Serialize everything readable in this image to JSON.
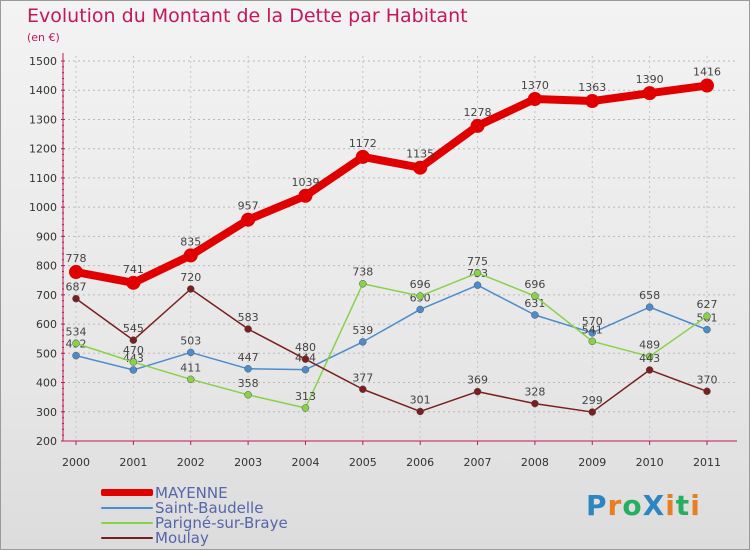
{
  "header": {
    "title": "Evolution du Montant de la Dette par Habitant",
    "subtitle": "(en €)"
  },
  "logo": {
    "text": "ProXiti",
    "letters": [
      {
        "char": "P",
        "color": "#2e86c1"
      },
      {
        "char": "r",
        "color": "#e67e22"
      },
      {
        "char": "o",
        "color": "#27ae60"
      },
      {
        "char": "X",
        "color": "#2e86c1"
      },
      {
        "char": "i",
        "color": "#e67e22"
      },
      {
        "char": "t",
        "color": "#27ae60"
      },
      {
        "char": "i",
        "color": "#e67e22"
      }
    ]
  },
  "chart_data": {
    "type": "line",
    "title": "Evolution du Montant de la Dette par Habitant",
    "subtitle": "(en €)",
    "xlabel": "",
    "ylabel": "",
    "x": [
      "2000",
      "2001",
      "2002",
      "2003",
      "2004",
      "2005",
      "2006",
      "2007",
      "2008",
      "2009",
      "2010",
      "2011"
    ],
    "ylim": [
      200,
      1500
    ],
    "yticks": [
      200,
      300,
      400,
      500,
      600,
      700,
      800,
      900,
      1000,
      1100,
      1200,
      1300,
      1400,
      1500
    ],
    "grid": "horizontal dashed",
    "legend_position": "bottom-left",
    "series": [
      {
        "name": "MAYENNE",
        "color": "#e00000",
        "emphasis": true,
        "values": [
          778,
          741,
          835,
          957,
          1039,
          1172,
          1135,
          1278,
          1370,
          1363,
          1390,
          1416
        ]
      },
      {
        "name": "Saint-Baudelle",
        "color": "#4a8ccc",
        "emphasis": false,
        "values": [
          492,
          443,
          503,
          447,
          444,
          539,
          650,
          733,
          631,
          570,
          658,
          581
        ]
      },
      {
        "name": "Parigné-sur-Braye",
        "color": "#88d24a",
        "emphasis": false,
        "values": [
          534,
          470,
          411,
          358,
          313,
          738,
          696,
          775,
          696,
          541,
          489,
          627
        ]
      },
      {
        "name": "Moulay",
        "color": "#7a1f1f",
        "emphasis": false,
        "values": [
          687,
          545,
          720,
          583,
          480,
          377,
          301,
          369,
          328,
          299,
          443,
          370
        ]
      }
    ]
  }
}
